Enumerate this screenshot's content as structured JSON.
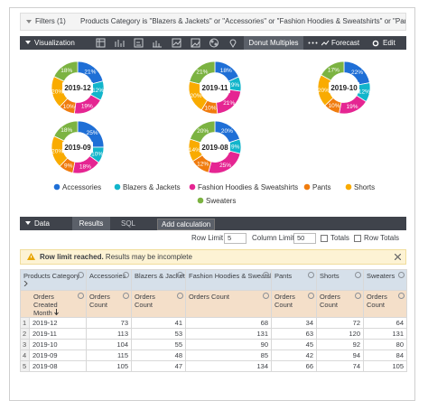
{
  "filters": {
    "label": "Filters (1)",
    "summary": "Products Category is \"Blazers & Jackets\" or \"Accessories\" or \"Fashion Hoodies & Sweatshirts\" or \"Pants\" or \"Shorts\""
  },
  "visualization_bar": {
    "title": "Visualization",
    "active_type": "Donut Multiples",
    "forecast": "Forecast",
    "edit": "Edit"
  },
  "chart_data": {
    "type": "donut_multiples",
    "categories": [
      "Accessories",
      "Blazers & Jackets",
      "Fashion Hoodies & Sweatshirts",
      "Pants",
      "Shorts",
      "Sweaters"
    ],
    "colors": [
      "#1f6fd6",
      "#12b5cb",
      "#e52592",
      "#f07c0e",
      "#f9ab00",
      "#7cb342"
    ],
    "charts": [
      {
        "title": "2019-12",
        "values": [
          21,
          12,
          19,
          10,
          20,
          18
        ],
        "value_labels": [
          "21%",
          "12%",
          "19%",
          "10%",
          "20%",
          "18%"
        ]
      },
      {
        "title": "2019-11",
        "values": [
          18,
          9,
          21,
          10,
          20,
          21
        ],
        "value_labels": [
          "18%",
          "9%",
          "21%",
          "10%",
          "20%",
          "21%"
        ]
      },
      {
        "title": "2019-10",
        "values": [
          22,
          12,
          19,
          10,
          20,
          17
        ],
        "value_labels": [
          "22%",
          "12%",
          "19%",
          "10%",
          "20%",
          "17%"
        ]
      },
      {
        "title": "2019-09",
        "values": [
          25,
          10,
          18,
          9,
          20,
          18
        ],
        "value_labels": [
          "25%",
          "10%",
          "18%",
          "9%",
          "20%",
          "18%"
        ]
      },
      {
        "title": "2019-08",
        "values": [
          20,
          9,
          25,
          12,
          14,
          20
        ],
        "value_labels": [
          "20%",
          "9%",
          "25%",
          "12%",
          "14%",
          "20%"
        ]
      }
    ]
  },
  "data_bar": {
    "title": "Data",
    "tabs": [
      "Results",
      "SQL"
    ],
    "button": "Add calculation"
  },
  "controls": {
    "row_limit_label": "Row Limit",
    "row_limit": 5,
    "column_limit_label": "Column Limit",
    "column_limit": 50,
    "totals": "Totals",
    "row_totals": "Row Totals"
  },
  "warning": {
    "strong": "Row limit reached.",
    "text": "Results may be incomplete"
  },
  "table": {
    "pivot_label": "Products Category",
    "dimension_label": "Orders Created Month",
    "measure_label": "Orders Count",
    "rows": [
      {
        "number": 1,
        "month": "2019-12",
        "counts": [
          73,
          41,
          68,
          34,
          72,
          64
        ]
      },
      {
        "number": 2,
        "month": "2019-11",
        "counts": [
          113,
          53,
          131,
          63,
          120,
          131
        ]
      },
      {
        "number": 3,
        "month": "2019-10",
        "counts": [
          104,
          55,
          90,
          45,
          92,
          80
        ]
      },
      {
        "number": 4,
        "month": "2019-09",
        "counts": [
          115,
          48,
          85,
          42,
          94,
          84
        ]
      },
      {
        "number": 5,
        "month": "2019-08",
        "counts": [
          105,
          47,
          134,
          66,
          74,
          105
        ]
      }
    ]
  }
}
